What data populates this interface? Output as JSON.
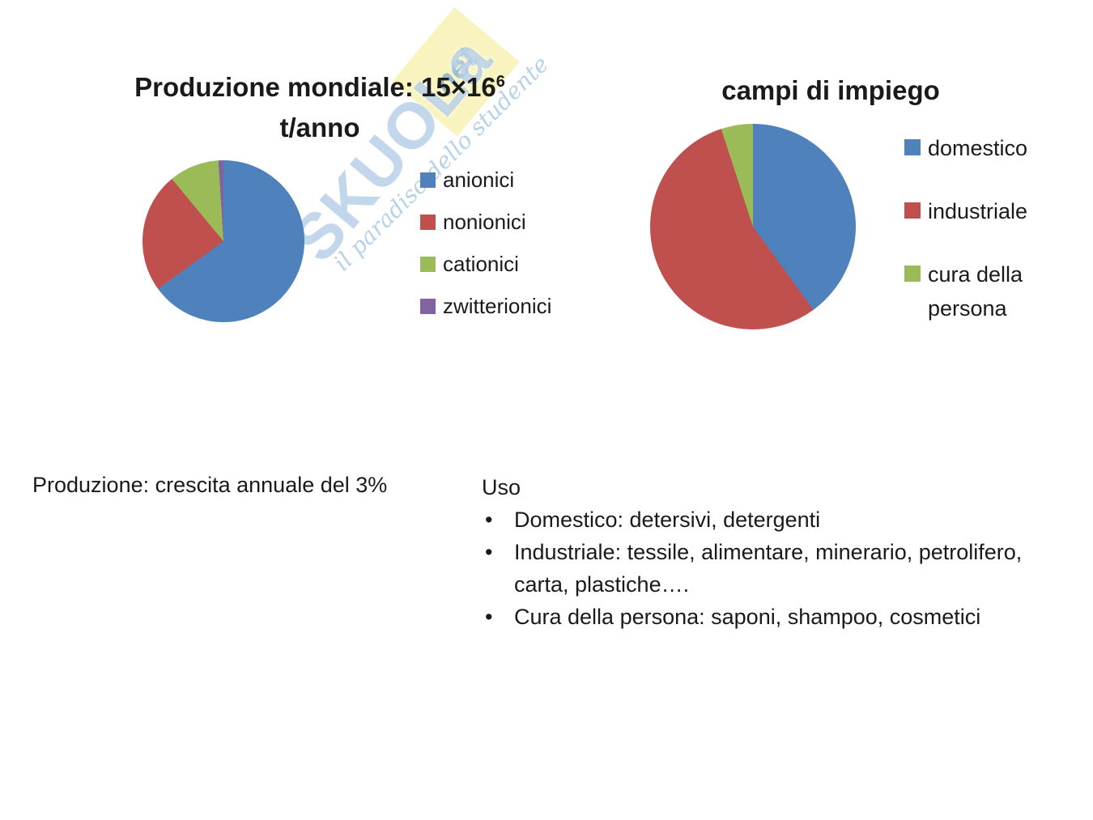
{
  "watermark": {
    "brand": "SKUOLa",
    "net": "net",
    "tagline": "il paradiso dello studente"
  },
  "chart_data": [
    {
      "type": "pie",
      "title": "Produzione mondiale: 15×16⁶ t/anno",
      "title_line1": "Produzione mondiale: 15×16",
      "title_sup": "6",
      "title_line2": "t/anno",
      "categories": [
        "anionici",
        "nonionici",
        "cationici",
        "zwitterionici"
      ],
      "values": [
        65,
        24,
        10,
        1
      ],
      "colors": [
        "#4F81BD",
        "#C0504D",
        "#9BBB59",
        "#8064A2"
      ],
      "legend_position": "right"
    },
    {
      "type": "pie",
      "title": "campi di impiego",
      "categories": [
        "domestico",
        "industriale",
        "cura della persona"
      ],
      "values": [
        40,
        55,
        5
      ],
      "colors": [
        "#4F81BD",
        "#C0504D",
        "#9BBB59"
      ],
      "legend_position": "right"
    }
  ],
  "notes": {
    "production": "Produzione: crescita annuale del 3%",
    "uso_heading": "Uso",
    "uso_bullets": [
      "Domestico: detersivi, detergenti",
      "Industriale: tessile, alimentare, minerario, petrolifero, carta,  plastiche….",
      "Cura della persona: saponi, shampoo, cosmetici"
    ]
  }
}
